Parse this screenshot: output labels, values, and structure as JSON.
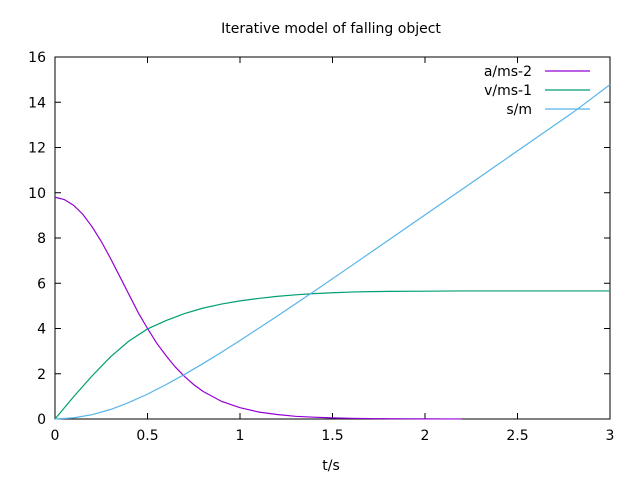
{
  "chart_data": {
    "type": "line",
    "title": "Iterative model of falling object",
    "xlabel": "t/s",
    "ylabel": "",
    "xlim": [
      0,
      3
    ],
    "ylim": [
      0,
      16
    ],
    "xticks": [
      0,
      0.5,
      1,
      1.5,
      2,
      2.5,
      3
    ],
    "yticks": [
      0,
      2,
      4,
      6,
      8,
      10,
      12,
      14,
      16
    ],
    "xtick_labels": [
      "0",
      "0.5",
      "1",
      "1.5",
      "2",
      "2.5",
      "3"
    ],
    "ytick_labels": [
      "0",
      "2",
      "4",
      "6",
      "8",
      "10",
      "12",
      "14",
      "16"
    ],
    "grid": false,
    "legend_position": "top-right",
    "series": [
      {
        "name": "a/ms-2",
        "color": "#9400d3",
        "x": [
          0,
          0.05,
          0.1,
          0.15,
          0.2,
          0.25,
          0.3,
          0.35,
          0.4,
          0.45,
          0.5,
          0.55,
          0.6,
          0.65,
          0.7,
          0.75,
          0.8,
          0.9,
          1.0,
          1.1,
          1.2,
          1.3,
          1.4,
          1.5,
          1.6,
          1.7,
          1.8,
          1.9,
          2.0,
          2.1,
          2.2
        ],
        "values": [
          9.8,
          9.7,
          9.45,
          9.05,
          8.5,
          7.85,
          7.1,
          6.3,
          5.5,
          4.7,
          4.0,
          3.35,
          2.8,
          2.3,
          1.88,
          1.52,
          1.22,
          0.78,
          0.5,
          0.31,
          0.2,
          0.12,
          0.08,
          0.05,
          0.03,
          0.02,
          0.012,
          0.008,
          0.005,
          0.003,
          0.002
        ]
      },
      {
        "name": "v/ms-1",
        "color": "#009e73",
        "x": [
          0,
          0.1,
          0.2,
          0.3,
          0.4,
          0.5,
          0.6,
          0.7,
          0.8,
          0.9,
          1.0,
          1.1,
          1.2,
          1.3,
          1.4,
          1.5,
          1.6,
          1.7,
          1.8,
          2.0,
          2.2,
          2.5,
          3.0
        ],
        "values": [
          0,
          0.98,
          1.9,
          2.75,
          3.45,
          3.98,
          4.35,
          4.66,
          4.9,
          5.08,
          5.22,
          5.33,
          5.42,
          5.49,
          5.54,
          5.58,
          5.61,
          5.63,
          5.64,
          5.65,
          5.66,
          5.66,
          5.66
        ]
      },
      {
        "name": "s/m",
        "color": "#56b4e9",
        "x": [
          0,
          0.1,
          0.2,
          0.3,
          0.4,
          0.5,
          0.6,
          0.7,
          0.8,
          0.9,
          1.0,
          1.2,
          1.4,
          1.6,
          1.8,
          2.0,
          2.2,
          2.4,
          2.6,
          2.8,
          3.0
        ],
        "values": [
          0,
          0.05,
          0.19,
          0.42,
          0.73,
          1.1,
          1.52,
          1.97,
          2.45,
          2.95,
          3.47,
          4.54,
          5.64,
          6.76,
          7.89,
          9.02,
          10.15,
          11.28,
          12.42,
          13.55,
          14.78
        ]
      }
    ]
  }
}
